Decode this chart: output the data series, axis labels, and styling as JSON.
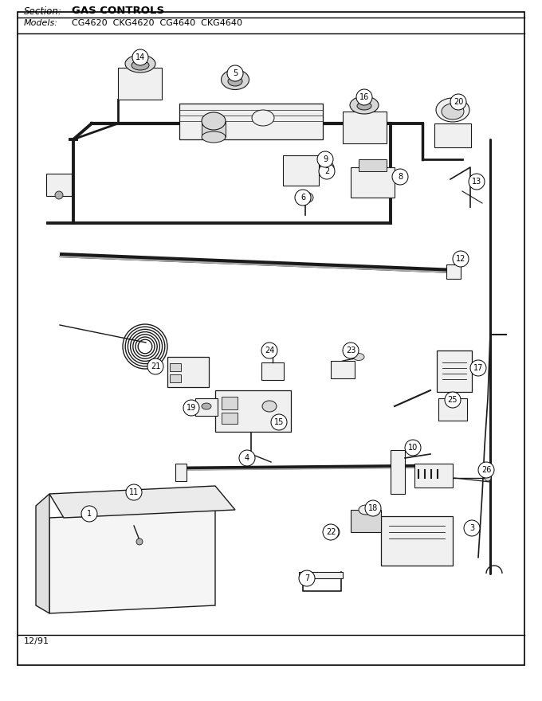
{
  "section_label": "Section:",
  "section_text": "GAS CONTROLS",
  "models_label": "Models:",
  "models_text": "CG4620  CKG4620  CG4640  CKG4640",
  "footer_text": "12/91",
  "bg_color": "#ffffff",
  "text_color": "#000000",
  "fig_width": 6.8,
  "fig_height": 8.8,
  "dpi": 100
}
